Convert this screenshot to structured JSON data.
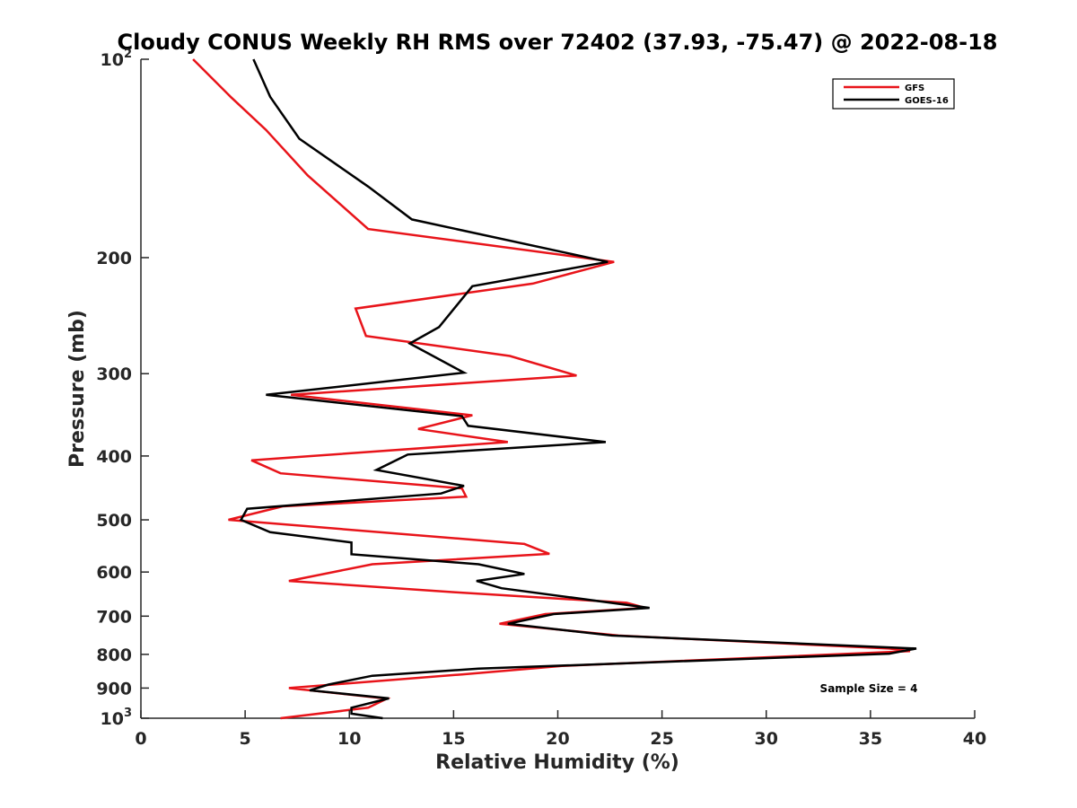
{
  "chart_data": {
    "type": "line",
    "title": "Cloudy CONUS Weekly RH RMS over 72402 (37.93, -75.47) @ 2022-08-18",
    "xlabel": "Relative Humidity (%)",
    "ylabel": "Pressure (mb)",
    "xlim": [
      0,
      40
    ],
    "ylim": [
      100,
      1000
    ],
    "y_scale": "log",
    "y_reversed": true,
    "x_ticks": [
      "0",
      "5",
      "10",
      "15",
      "20",
      "25",
      "30",
      "35",
      "40"
    ],
    "y_ticks": [
      {
        "value": 100,
        "base": "10",
        "exp": "2"
      },
      {
        "value": 200,
        "label": "200"
      },
      {
        "value": 300,
        "label": "300"
      },
      {
        "value": 400,
        "label": "400"
      },
      {
        "value": 500,
        "label": "500"
      },
      {
        "value": 600,
        "label": "600"
      },
      {
        "value": 700,
        "label": "700"
      },
      {
        "value": 800,
        "label": "800"
      },
      {
        "value": 900,
        "label": "900"
      },
      {
        "value": 1000,
        "base": "10",
        "exp": "3"
      }
    ],
    "grid": false,
    "legend_position": "top-right",
    "annotation": "Sample Size = 4",
    "series": [
      {
        "name": "GFS",
        "color": "#e8141a",
        "points": [
          [
            2.5,
            100
          ],
          [
            4.3,
            114
          ],
          [
            6.0,
            128
          ],
          [
            8.0,
            150
          ],
          [
            10.9,
            181
          ],
          [
            22.7,
            203
          ],
          [
            18.8,
            219
          ],
          [
            10.3,
            239
          ],
          [
            10.8,
            263
          ],
          [
            17.7,
            282
          ],
          [
            20.9,
            302
          ],
          [
            7.2,
            323
          ],
          [
            15.9,
            347
          ],
          [
            13.3,
            364
          ],
          [
            17.6,
            381
          ],
          [
            5.3,
            406
          ],
          [
            6.7,
            425
          ],
          [
            15.4,
            448
          ],
          [
            15.6,
            461
          ],
          [
            6.8,
            477
          ],
          [
            4.2,
            500
          ],
          [
            18.4,
            544
          ],
          [
            19.6,
            563
          ],
          [
            11.1,
            584
          ],
          [
            7.1,
            619
          ],
          [
            15.1,
            644
          ],
          [
            23.3,
            668
          ],
          [
            24.2,
            680
          ],
          [
            19.4,
            695
          ],
          [
            17.2,
            719
          ],
          [
            22.9,
            749
          ],
          [
            35.9,
            784
          ],
          [
            36.9,
            791
          ],
          [
            20.2,
            833
          ],
          [
            15.4,
            858
          ],
          [
            7.1,
            900
          ],
          [
            11.8,
            934
          ],
          [
            10.9,
            964
          ],
          [
            6.7,
            1000
          ]
        ]
      },
      {
        "name": "GOES-16",
        "color": "#000000",
        "points": [
          [
            5.4,
            100
          ],
          [
            6.2,
            114
          ],
          [
            7.6,
            132
          ],
          [
            10.9,
            156
          ],
          [
            13.0,
            175
          ],
          [
            22.4,
            203
          ],
          [
            15.9,
            221
          ],
          [
            14.3,
            255
          ],
          [
            12.9,
            270
          ],
          [
            15.5,
            299
          ],
          [
            6.0,
            323
          ],
          [
            15.4,
            348
          ],
          [
            15.7,
            360
          ],
          [
            22.3,
            381
          ],
          [
            12.8,
            398
          ],
          [
            11.3,
            420
          ],
          [
            15.5,
            444
          ],
          [
            14.4,
            456
          ],
          [
            5.1,
            481
          ],
          [
            4.8,
            500
          ],
          [
            6.2,
            522
          ],
          [
            10.1,
            541
          ],
          [
            10.1,
            564
          ],
          [
            16.2,
            584
          ],
          [
            18.4,
            604
          ],
          [
            16.1,
            619
          ],
          [
            17.3,
            635
          ],
          [
            24.4,
            680
          ],
          [
            19.8,
            695
          ],
          [
            17.6,
            719
          ],
          [
            22.6,
            749
          ],
          [
            37.2,
            784
          ],
          [
            35.9,
            798
          ],
          [
            16.2,
            841
          ],
          [
            11.1,
            862
          ],
          [
            9.0,
            889
          ],
          [
            8.1,
            907
          ],
          [
            11.9,
            933
          ],
          [
            10.1,
            964
          ],
          [
            10.1,
            984
          ],
          [
            11.6,
            1000
          ]
        ]
      }
    ]
  }
}
